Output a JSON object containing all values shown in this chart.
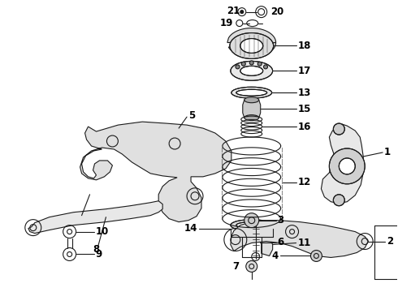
{
  "bg_color": "#ffffff",
  "line_color": "#1a1a1a",
  "fig_width": 4.9,
  "fig_height": 3.6,
  "dpi": 100,
  "font_size": 8.5,
  "lw": 0.8
}
